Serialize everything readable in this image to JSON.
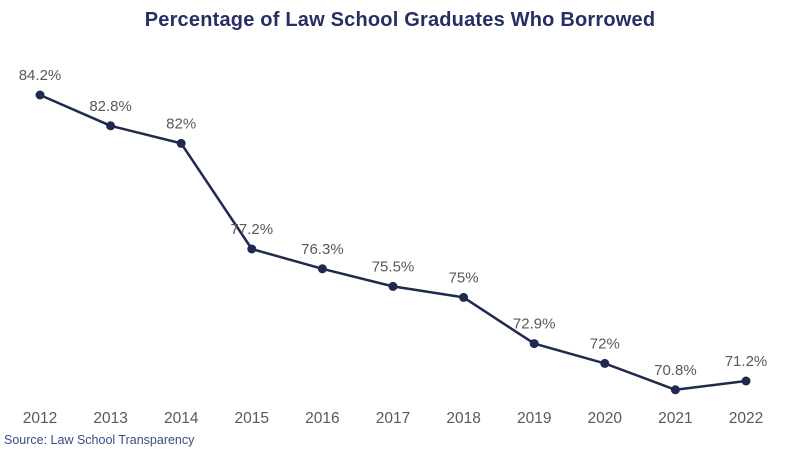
{
  "chart_data": {
    "type": "line",
    "title": "Percentage of Law School Graduates Who Borrowed",
    "categories": [
      "2012",
      "2013",
      "2014",
      "2015",
      "2016",
      "2017",
      "2018",
      "2019",
      "2020",
      "2021",
      "2022"
    ],
    "values": [
      84.2,
      82.8,
      82,
      77.2,
      76.3,
      75.5,
      75,
      72.9,
      72,
      70.8,
      71.2
    ],
    "point_labels": [
      "84.2%",
      "82.8%",
      "82%",
      "77.2%",
      "76.3%",
      "75.5%",
      "75%",
      "72.9%",
      "72%",
      "70.8%",
      "71.2%"
    ],
    "xlabel": "",
    "ylabel": "",
    "ylim": [
      69,
      86
    ],
    "grid": false,
    "legend": "none",
    "marker": "circle"
  },
  "source": {
    "text": "Source: Law School Transparency"
  },
  "colors": {
    "title": "#272e64",
    "line": "#1f2a4e",
    "marker": "#1f2a4e",
    "data_label": "#595959",
    "axis_label": "#595959",
    "source": "#3d4a85"
  }
}
